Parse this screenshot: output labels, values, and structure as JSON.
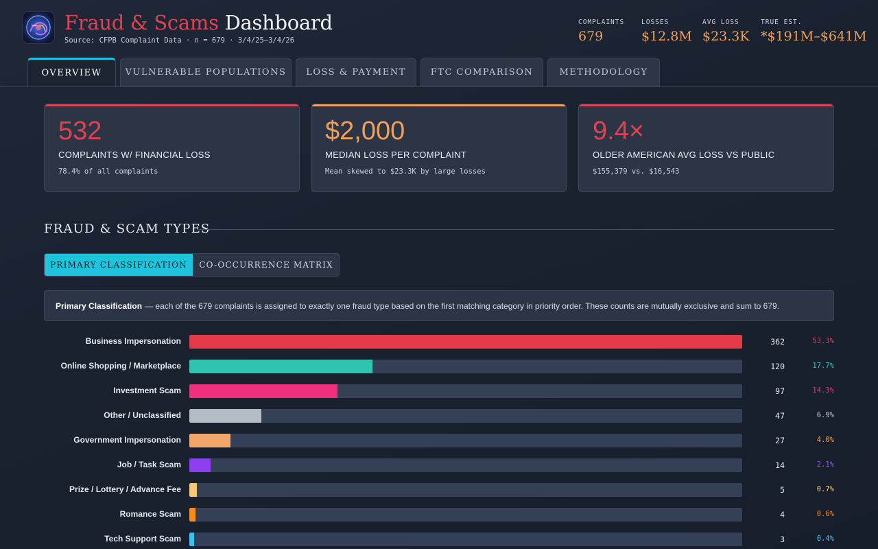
{
  "header": {
    "title_part1": "Fraud & Scams",
    "title_part2": "Dashboard",
    "subtitle": "Source: CFPB Complaint Data · n = 679 · 3/4/25–3/4/26",
    "stats": [
      {
        "label": "COMPLAINTS",
        "value": "679"
      },
      {
        "label": "LOSSES",
        "value": "$12.8M"
      },
      {
        "label": "AVG LOSS",
        "value": "$23.3K"
      },
      {
        "label": "TRUE EST.",
        "value": "*$191M–$641M"
      }
    ]
  },
  "tabs": [
    {
      "label": "OVERVIEW",
      "active": true
    },
    {
      "label": "VULNERABLE POPULATIONS",
      "active": false
    },
    {
      "label": "LOSS & PAYMENT",
      "active": false
    },
    {
      "label": "FTC COMPARISON",
      "active": false
    },
    {
      "label": "METHODOLOGY",
      "active": false
    }
  ],
  "kpis": [
    {
      "value": "532",
      "label": "COMPLAINTS W/ FINANCIAL LOSS",
      "note": "78.4% of all complaints",
      "color": "#e0434f"
    },
    {
      "value": "$2,000",
      "label": "MEDIAN LOSS PER COMPLAINT",
      "note": "Mean skewed to $23.3K by large losses",
      "color": "#f0a05a"
    },
    {
      "value": "9.4×",
      "label": "OLDER AMERICAN AVG LOSS VS PUBLIC",
      "note": "$155,379 vs. $16,543",
      "color": "#e0434f"
    }
  ],
  "section": {
    "title": "FRAUD & SCAM TYPES",
    "toggle": {
      "primary": "PRIMARY CLASSIFICATION",
      "secondary": "CO-OCCURRENCE MATRIX"
    },
    "info_bold": "Primary Classification",
    "info_text": "— each of the 679 complaints is assigned to exactly one fraud type based on the first matching category in priority order. These counts are mutually exclusive and sum to 679."
  },
  "chart_data": {
    "type": "bar",
    "orientation": "horizontal",
    "categories": [
      "Business Impersonation",
      "Online Shopping / Marketplace",
      "Investment Scam",
      "Other / Unclassified",
      "Government Impersonation",
      "Job / Task Scam",
      "Prize / Lottery / Advance Fee",
      "Romance Scam",
      "Tech Support Scam"
    ],
    "values": [
      362,
      120,
      97,
      47,
      27,
      14,
      5,
      4,
      3
    ],
    "percent_labels": [
      "53.3%",
      "17.7%",
      "14.3%",
      "6.9%",
      "4.0%",
      "2.1%",
      "0.7%",
      "0.6%",
      "0.4%"
    ],
    "colors": [
      "#e23a48",
      "#2ec4b0",
      "#f0307f",
      "#b4bcc6",
      "#f2a66a",
      "#8d3ff0",
      "#f3c978",
      "#f58a1f",
      "#3ec0ee"
    ],
    "pct_colors": [
      "#e0434f",
      "#2ec4b0",
      "#f0307f",
      "#c4cad3",
      "#f0a05a",
      "#9a57f2",
      "#f3c978",
      "#f58a1f",
      "#3ec0ee"
    ],
    "xlim": [
      0,
      362
    ]
  }
}
